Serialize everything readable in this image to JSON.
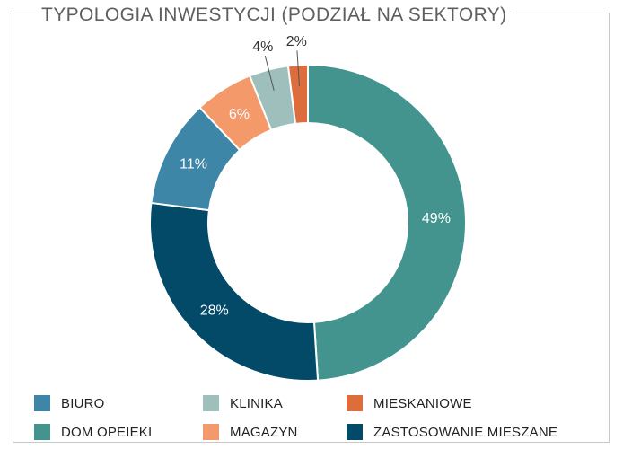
{
  "chart_data": {
    "type": "pie",
    "title": "TYPOLOGIA INWESTYCJI (PODZIAŁ NA SEKTORY)",
    "donut": true,
    "legend_position": "bottom",
    "slices": [
      {
        "name": "DOM OPEIEKI",
        "value": 49,
        "label": "49%",
        "color": "#43938f"
      },
      {
        "name": "ZASTOSOWANIE MIESZANE",
        "value": 28,
        "label": "28%",
        "color": "#034a68"
      },
      {
        "name": "BIURO",
        "value": 11,
        "label": "11%",
        "color": "#3e86a8"
      },
      {
        "name": "MAGAZYN",
        "value": 6,
        "label": "6%",
        "color": "#f3996a"
      },
      {
        "name": "KLINIKA",
        "value": 4,
        "label": "4%",
        "color": "#9fbfbd"
      },
      {
        "name": "MIESKANIOWE",
        "value": 2,
        "label": "2%",
        "color": "#dd6d3d"
      }
    ],
    "legend": [
      {
        "name": "BIURO",
        "color": "#3e86a8"
      },
      {
        "name": "KLINIKA",
        "color": "#9fbfbd"
      },
      {
        "name": "MIESKANIOWE",
        "color": "#dd6d3d"
      },
      {
        "name": "DOM OPEIEKI",
        "color": "#43938f"
      },
      {
        "name": "MAGAZYN",
        "color": "#f3996a"
      },
      {
        "name": "ZASTOSOWANIE MIESZANE",
        "color": "#034a68"
      }
    ]
  }
}
